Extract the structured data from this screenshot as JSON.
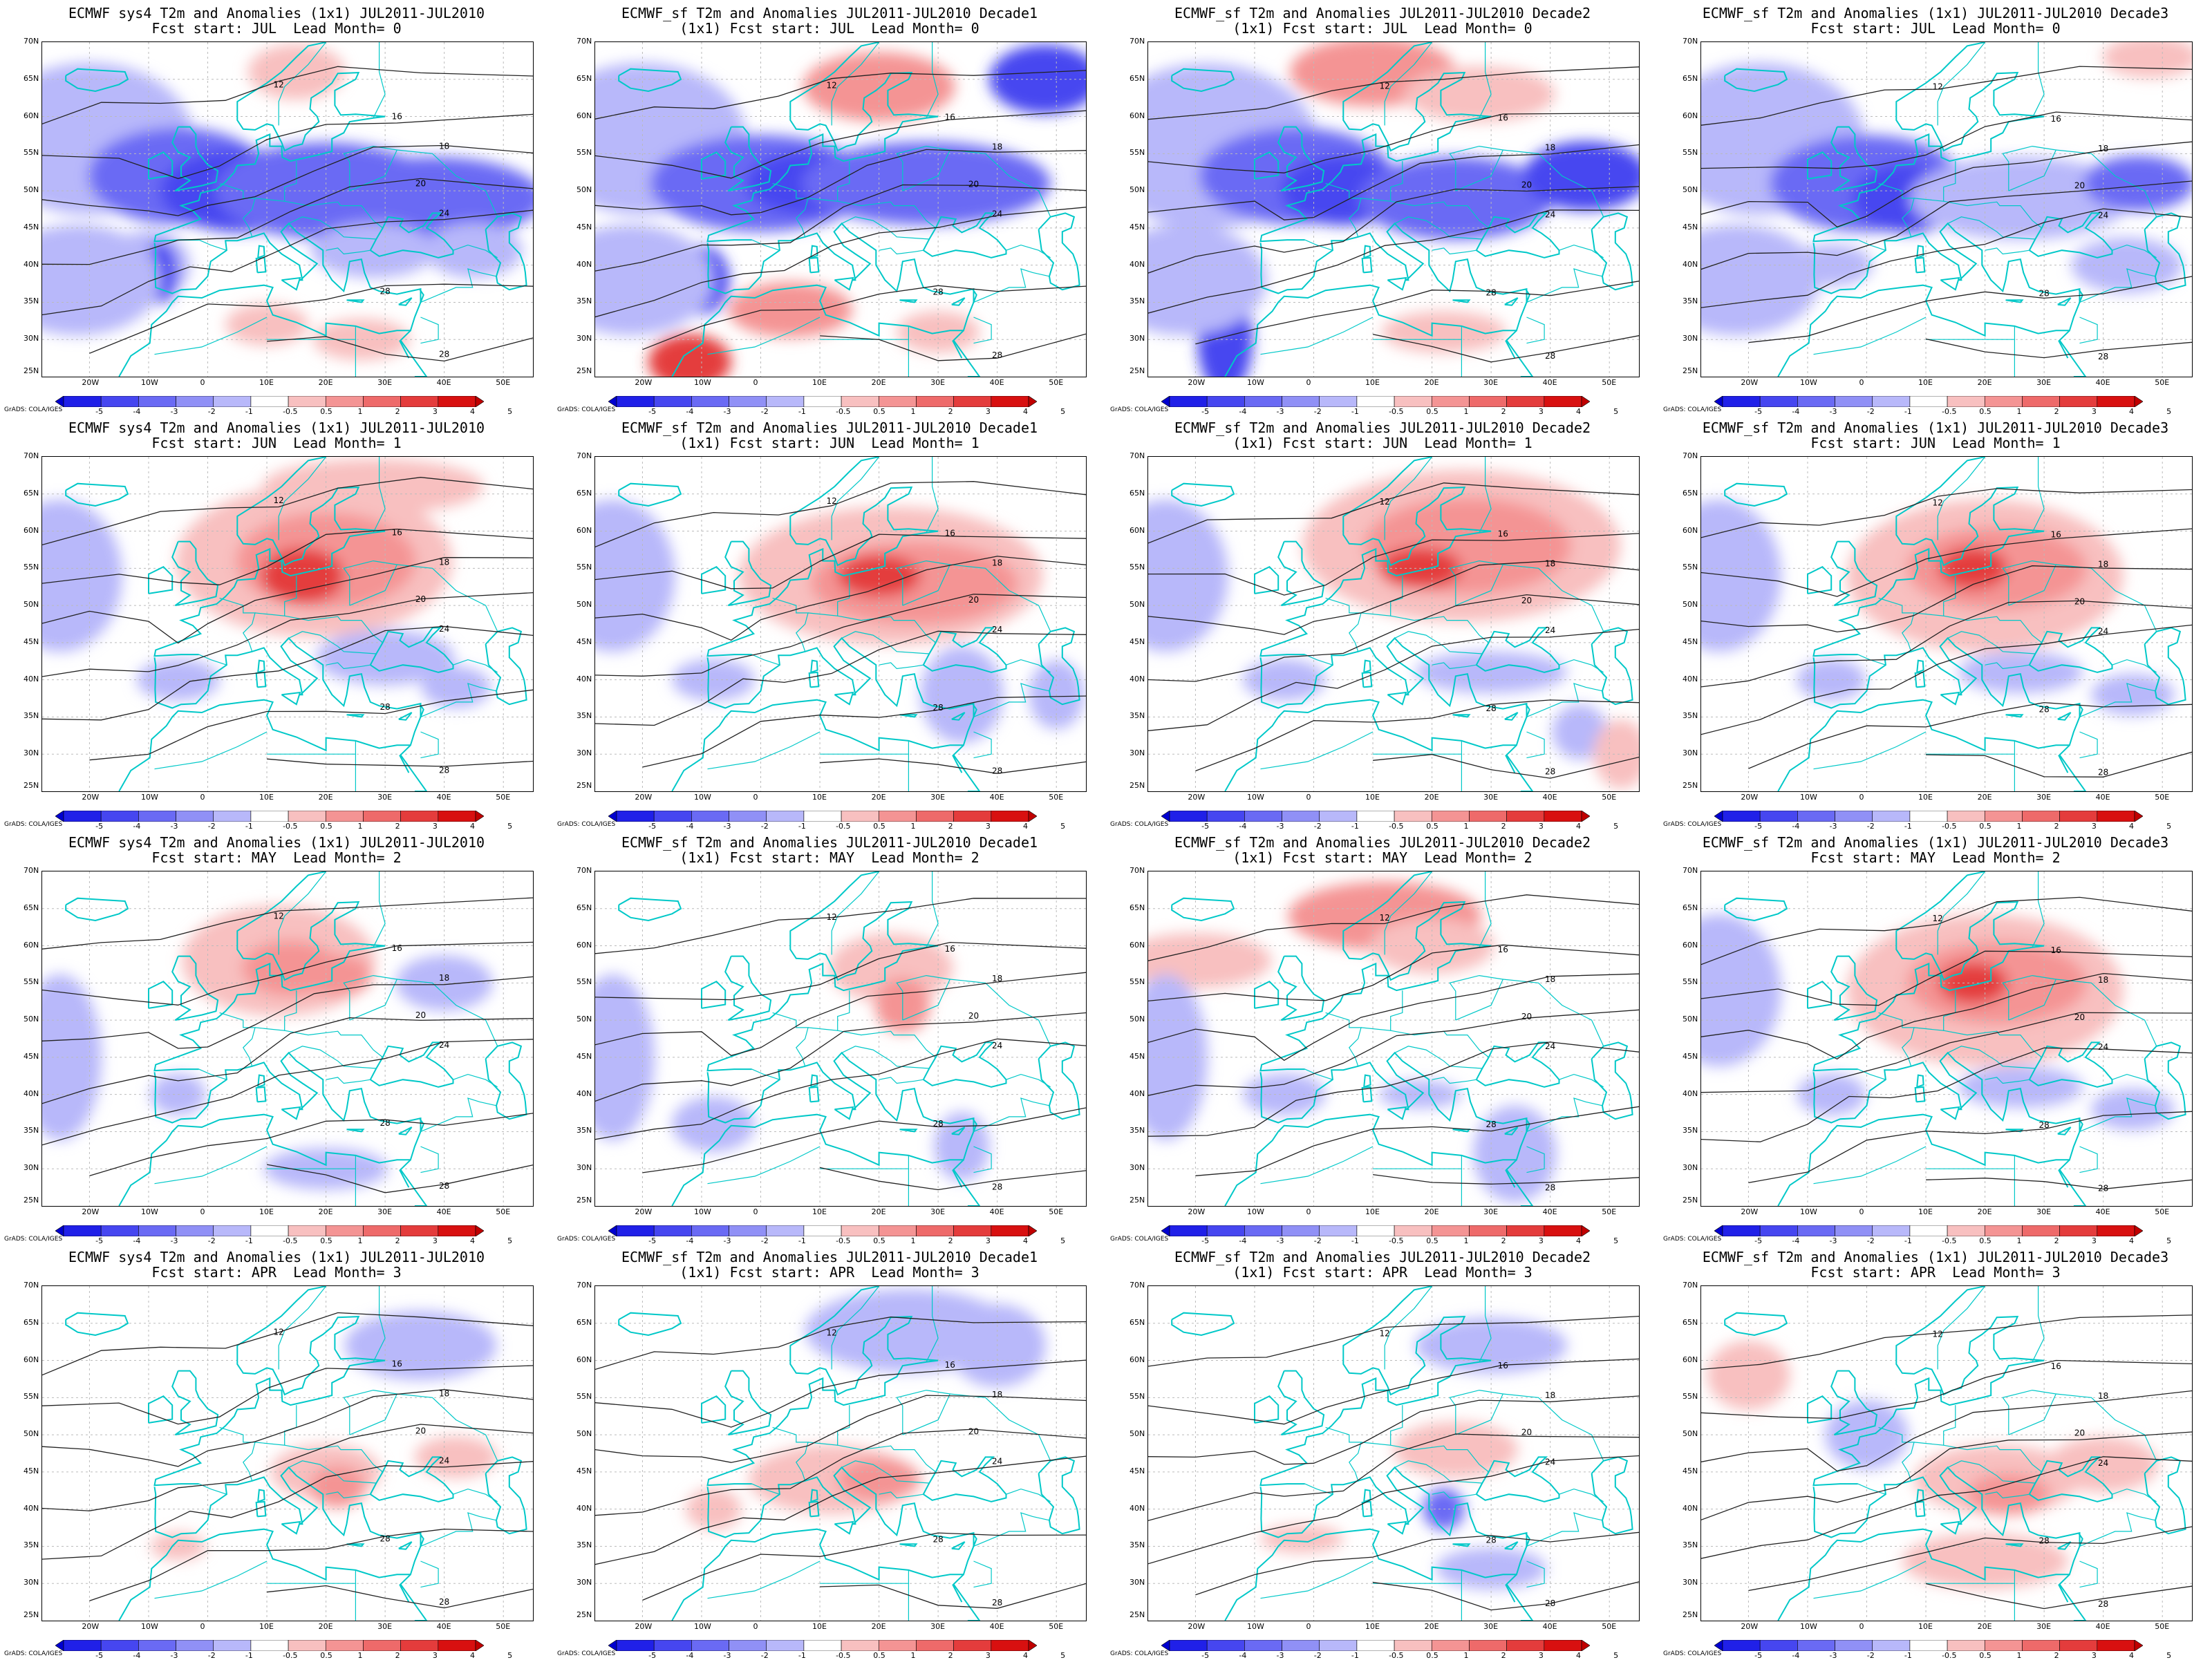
{
  "panels": [
    {
      "title1": "ECMWF sys4 T2m and Anomalies (1x1) JUL2011-JUL2010",
      "title2": "Fcst start: JUL  Lead Month= 0",
      "anom": "cold",
      "pattern": 0
    },
    {
      "title1": "ECMWF_sf T2m and Anomalies JUL2011-JUL2010 Decade1",
      "title2": "(1x1) Fcst start: JUL  Lead Month= 0",
      "anom": "cold",
      "pattern": 1
    },
    {
      "title1": "ECMWF_sf T2m and Anomalies JUL2011-JUL2010 Decade2",
      "title2": "(1x1) Fcst start: JUL  Lead Month= 0",
      "anom": "cold",
      "pattern": 2
    },
    {
      "title1": "ECMWF_sf T2m and Anomalies (1x1) JUL2011-JUL2010 Decade3",
      "title2": "Fcst start: JUL  Lead Month= 0",
      "anom": "cold",
      "pattern": 3
    },
    {
      "title1": "ECMWF sys4 T2m and Anomalies (1x1) JUL2011-JUL2010",
      "title2": "Fcst start: JUN  Lead Month= 1",
      "anom": "warm",
      "pattern": 0
    },
    {
      "title1": "ECMWF_sf T2m and Anomalies JUL2011-JUL2010 Decade1",
      "title2": "(1x1) Fcst start: JUN  Lead Month= 1",
      "anom": "warm",
      "pattern": 1
    },
    {
      "title1": "ECMWF_sf T2m and Anomalies JUL2011-JUL2010 Decade2",
      "title2": "(1x1) Fcst start: JUN  Lead Month= 1",
      "anom": "warm",
      "pattern": 2
    },
    {
      "title1": "ECMWF_sf T2m and Anomalies (1x1) JUL2011-JUL2010 Decade3",
      "title2": "Fcst start: JUN  Lead Month= 1",
      "anom": "warm",
      "pattern": 3
    },
    {
      "title1": "ECMWF sys4 T2m and Anomalies (1x1) JUL2011-JUL2010",
      "title2": "Fcst start: MAY  Lead Month= 2",
      "anom": "mild",
      "pattern": 0
    },
    {
      "title1": "ECMWF_sf T2m and Anomalies JUL2011-JUL2010 Decade1",
      "title2": "(1x1) Fcst start: MAY  Lead Month= 2",
      "anom": "mild",
      "pattern": 1
    },
    {
      "title1": "ECMWF_sf T2m and Anomalies JUL2011-JUL2010 Decade2",
      "title2": "(1x1) Fcst start: MAY  Lead Month= 2",
      "anom": "mild",
      "pattern": 2
    },
    {
      "title1": "ECMWF_sf T2m and Anomalies (1x1) JUL2011-JUL2010 Decade3",
      "title2": "Fcst start: MAY  Lead Month= 2",
      "anom": "warm",
      "pattern": 3
    },
    {
      "title1": "ECMWF sys4 T2m and Anomalies (1x1) JUL2011-JUL2010",
      "title2": "Fcst start: APR  Lead Month= 3",
      "anom": "weak",
      "pattern": 0
    },
    {
      "title1": "ECMWF_sf T2m and Anomalies JUL2011-JUL2010 Decade1",
      "title2": "(1x1) Fcst start: APR  Lead Month= 3",
      "anom": "weak",
      "pattern": 1
    },
    {
      "title1": "ECMWF_sf T2m and Anomalies JUL2011-JUL2010 Decade2",
      "title2": "(1x1) Fcst start: APR  Lead Month= 3",
      "anom": "weak",
      "pattern": 2
    },
    {
      "title1": "ECMWF_sf T2m and Anomalies (1x1) JUL2011-JUL2010 Decade3",
      "title2": "Fcst start: APR  Lead Month= 3",
      "anom": "weak",
      "pattern": 3
    }
  ],
  "lat_labels": [
    "70N",
    "65N",
    "60N",
    "55N",
    "50N",
    "45N",
    "40N",
    "35N",
    "30N",
    "25N"
  ],
  "lon_labels": [
    "20W",
    "10W",
    "0",
    "10E",
    "20E",
    "30E",
    "40E",
    "50E"
  ],
  "colorbar": {
    "labels": [
      "-5",
      "-4",
      "-3",
      "-2",
      "-1",
      "-0.5",
      "0.5",
      "1",
      "2",
      "3",
      "4",
      "5"
    ],
    "colors": [
      "#0000d0",
      "#2020e8",
      "#4646f0",
      "#6a6af4",
      "#9090f6",
      "#b8b8fa",
      "#ffffff",
      "#f8c0c0",
      "#f49494",
      "#ee6a6a",
      "#e43c3c",
      "#d81010",
      "#c00000"
    ]
  },
  "credit": "GrADS: COLA/IGES",
  "colors": {
    "coast": "#00c8c8",
    "contour": "#222222",
    "grid": "#bbbbbb"
  }
}
